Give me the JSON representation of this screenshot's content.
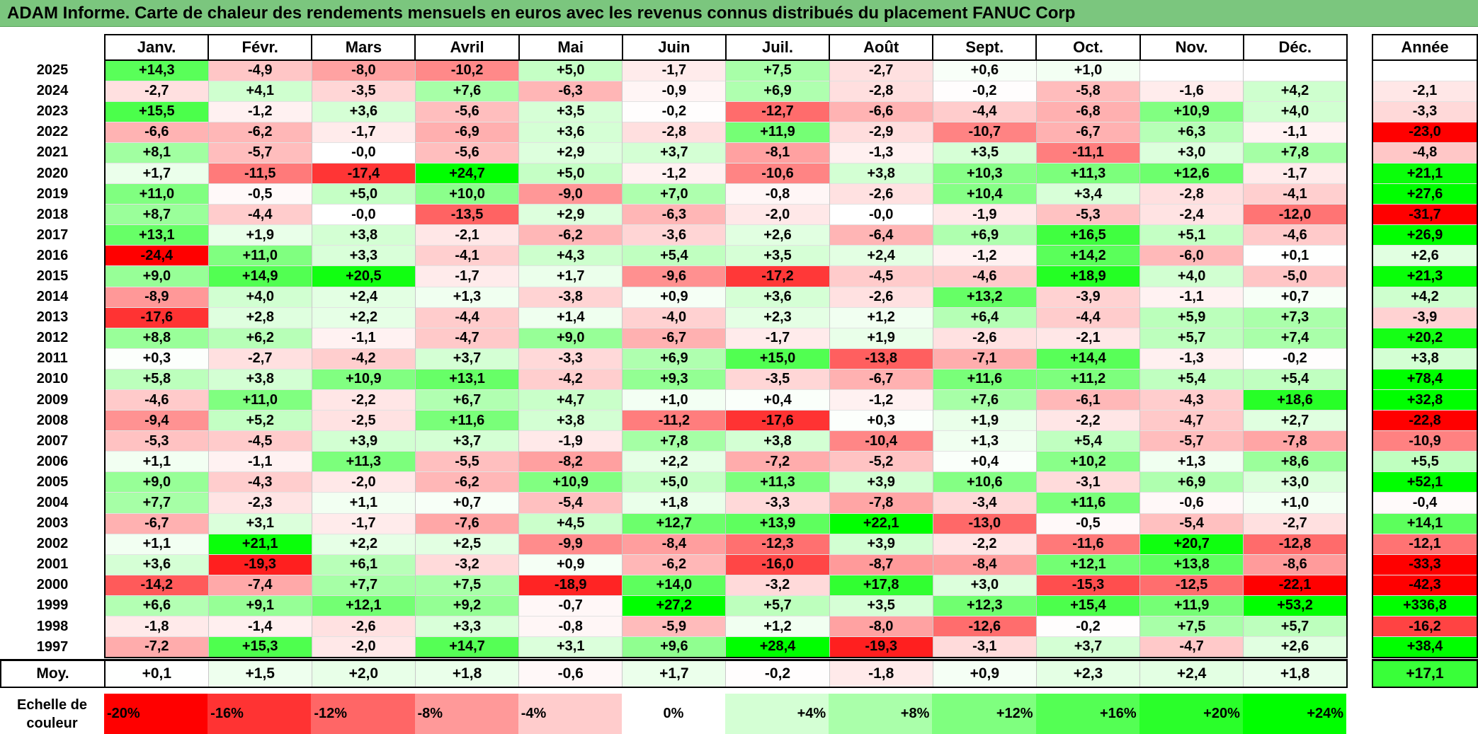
{
  "title": "ADAM Informe. Carte de chaleur des rendements mensuels en euros avec les revenus connus distribués du placement FANUC Corp",
  "chart_data": {
    "type": "heatmap",
    "months": [
      "Janv.",
      "Févr.",
      "Mars",
      "Avril",
      "Mai",
      "Juin",
      "Juil.",
      "Août",
      "Sept.",
      "Oct.",
      "Nov.",
      "Déc."
    ],
    "annual_header": "Année",
    "avg_label": "Moy.",
    "rows": [
      {
        "year": "2025",
        "values": [
          "+14,3",
          "-4,9",
          "-8,0",
          "-10,2",
          "+5,0",
          "-1,7",
          "+7,5",
          "-2,7",
          "+0,6",
          "+1,0",
          "",
          ""
        ],
        "annual": ""
      },
      {
        "year": "2024",
        "values": [
          "-2,7",
          "+4,1",
          "-3,5",
          "+7,6",
          "-6,3",
          "-0,9",
          "+6,9",
          "-2,8",
          "-0,2",
          "-5,8",
          "-1,6",
          "+4,2"
        ],
        "annual": "-2,1"
      },
      {
        "year": "2023",
        "values": [
          "+15,5",
          "-1,2",
          "+3,6",
          "-5,6",
          "+3,5",
          "-0,2",
          "-12,7",
          "-6,6",
          "-4,4",
          "-6,8",
          "+10,9",
          "+4,0"
        ],
        "annual": "-3,3"
      },
      {
        "year": "2022",
        "values": [
          "-6,6",
          "-6,2",
          "-1,7",
          "-6,9",
          "+3,6",
          "-2,8",
          "+11,9",
          "-2,9",
          "-10,7",
          "-6,7",
          "+6,3",
          "-1,1"
        ],
        "annual": "-23,0"
      },
      {
        "year": "2021",
        "values": [
          "+8,1",
          "-5,7",
          "-0,0",
          "-5,6",
          "+2,9",
          "+3,7",
          "-8,1",
          "-1,3",
          "+3,5",
          "-11,1",
          "+3,0",
          "+7,8"
        ],
        "annual": "-4,8"
      },
      {
        "year": "2020",
        "values": [
          "+1,7",
          "-11,5",
          "-17,4",
          "+24,7",
          "+5,0",
          "-1,2",
          "-10,6",
          "+3,8",
          "+10,3",
          "+11,3",
          "+12,6",
          "-1,7"
        ],
        "annual": "+21,1"
      },
      {
        "year": "2019",
        "values": [
          "+11,0",
          "-0,5",
          "+5,0",
          "+10,0",
          "-9,0",
          "+7,0",
          "-0,8",
          "-2,6",
          "+10,4",
          "+3,4",
          "-2,8",
          "-4,1"
        ],
        "annual": "+27,6"
      },
      {
        "year": "2018",
        "values": [
          "+8,7",
          "-4,4",
          "-0,0",
          "-13,5",
          "+2,9",
          "-6,3",
          "-2,0",
          "-0,0",
          "-1,9",
          "-5,3",
          "-2,4",
          "-12,0"
        ],
        "annual": "-31,7"
      },
      {
        "year": "2017",
        "values": [
          "+13,1",
          "+1,9",
          "+3,8",
          "-2,1",
          "-6,2",
          "-3,6",
          "+2,6",
          "-6,4",
          "+6,9",
          "+16,5",
          "+5,1",
          "-4,6"
        ],
        "annual": "+26,9"
      },
      {
        "year": "2016",
        "values": [
          "-24,4",
          "+11,0",
          "+3,3",
          "-4,1",
          "+4,3",
          "+5,4",
          "+3,5",
          "+2,4",
          "-1,2",
          "+14,2",
          "-6,0",
          "+0,1"
        ],
        "annual": "+2,6"
      },
      {
        "year": "2015",
        "values": [
          "+9,0",
          "+14,9",
          "+20,5",
          "-1,7",
          "+1,7",
          "-9,6",
          "-17,2",
          "-4,5",
          "-4,6",
          "+18,9",
          "+4,0",
          "-5,0"
        ],
        "annual": "+21,3"
      },
      {
        "year": "2014",
        "values": [
          "-8,9",
          "+4,0",
          "+2,4",
          "+1,3",
          "-3,8",
          "+0,9",
          "+3,6",
          "-2,6",
          "+13,2",
          "-3,9",
          "-1,1",
          "+0,7"
        ],
        "annual": "+4,2"
      },
      {
        "year": "2013",
        "values": [
          "-17,6",
          "+2,8",
          "+2,2",
          "-4,4",
          "+1,4",
          "-4,0",
          "+2,3",
          "+1,2",
          "+6,4",
          "-4,4",
          "+5,9",
          "+7,3"
        ],
        "annual": "-3,9"
      },
      {
        "year": "2012",
        "values": [
          "+8,8",
          "+6,2",
          "-1,1",
          "-4,7",
          "+9,0",
          "-6,7",
          "-1,7",
          "+1,9",
          "-2,6",
          "-2,1",
          "+5,7",
          "+7,4"
        ],
        "annual": "+20,2"
      },
      {
        "year": "2011",
        "values": [
          "+0,3",
          "-2,7",
          "-4,2",
          "+3,7",
          "-3,3",
          "+6,9",
          "+15,0",
          "-13,8",
          "-7,1",
          "+14,4",
          "-1,3",
          "-0,2"
        ],
        "annual": "+3,8"
      },
      {
        "year": "2010",
        "values": [
          "+5,8",
          "+3,8",
          "+10,9",
          "+13,1",
          "-4,2",
          "+9,3",
          "-3,5",
          "-6,7",
          "+11,6",
          "+11,2",
          "+5,4",
          "+5,4"
        ],
        "annual": "+78,4"
      },
      {
        "year": "2009",
        "values": [
          "-4,6",
          "+11,0",
          "-2,2",
          "+6,7",
          "+4,7",
          "+1,0",
          "+0,4",
          "-1,2",
          "+7,6",
          "-6,1",
          "-4,3",
          "+18,6"
        ],
        "annual": "+32,8"
      },
      {
        "year": "2008",
        "values": [
          "-9,4",
          "+5,2",
          "-2,5",
          "+11,6",
          "+3,8",
          "-11,2",
          "-17,6",
          "+0,3",
          "+1,9",
          "-2,2",
          "-4,7",
          "+2,7"
        ],
        "annual": "-22,8"
      },
      {
        "year": "2007",
        "values": [
          "-5,3",
          "-4,5",
          "+3,9",
          "+3,7",
          "-1,9",
          "+7,8",
          "+3,8",
          "-10,4",
          "+1,3",
          "+5,4",
          "-5,7",
          "-7,8"
        ],
        "annual": "-10,9"
      },
      {
        "year": "2006",
        "values": [
          "+1,1",
          "-1,1",
          "+11,3",
          "-5,5",
          "-8,2",
          "+2,2",
          "-7,2",
          "-5,2",
          "+0,4",
          "+10,2",
          "+1,3",
          "+8,6"
        ],
        "annual": "+5,5"
      },
      {
        "year": "2005",
        "values": [
          "+9,0",
          "-4,3",
          "-2,0",
          "-6,2",
          "+10,9",
          "+5,0",
          "+11,3",
          "+3,9",
          "+10,6",
          "-3,1",
          "+6,9",
          "+3,0"
        ],
        "annual": "+52,1"
      },
      {
        "year": "2004",
        "values": [
          "+7,7",
          "-2,3",
          "+1,1",
          "+0,7",
          "-5,4",
          "+1,8",
          "-3,3",
          "-7,8",
          "-3,4",
          "+11,6",
          "-0,6",
          "+1,0"
        ],
        "annual": "-0,4"
      },
      {
        "year": "2003",
        "values": [
          "-6,7",
          "+3,1",
          "-1,7",
          "-7,6",
          "+4,5",
          "+12,7",
          "+13,9",
          "+22,1",
          "-13,0",
          "-0,5",
          "-5,4",
          "-2,7"
        ],
        "annual": "+14,1"
      },
      {
        "year": "2002",
        "values": [
          "+1,1",
          "+21,1",
          "+2,2",
          "+2,5",
          "-9,9",
          "-8,4",
          "-12,3",
          "+3,9",
          "-2,2",
          "-11,6",
          "+20,7",
          "-12,8"
        ],
        "annual": "-12,1"
      },
      {
        "year": "2001",
        "values": [
          "+3,6",
          "-19,3",
          "+6,1",
          "-3,2",
          "+0,9",
          "-6,2",
          "-16,0",
          "-8,7",
          "-8,4",
          "+12,1",
          "+13,8",
          "-8,6"
        ],
        "annual": "-33,3"
      },
      {
        "year": "2000",
        "values": [
          "-14,2",
          "-7,4",
          "+7,7",
          "+7,5",
          "-18,9",
          "+14,0",
          "-3,2",
          "+17,8",
          "+3,0",
          "-15,3",
          "-12,5",
          "-22,1"
        ],
        "annual": "-42,3"
      },
      {
        "year": "1999",
        "values": [
          "+6,6",
          "+9,1",
          "+12,1",
          "+9,2",
          "-0,7",
          "+27,2",
          "+5,7",
          "+3,5",
          "+12,3",
          "+15,4",
          "+11,9",
          "+53,2"
        ],
        "annual": "+336,8"
      },
      {
        "year": "1998",
        "values": [
          "-1,8",
          "-1,4",
          "-2,6",
          "+3,3",
          "-0,8",
          "-5,9",
          "+1,2",
          "-8,0",
          "-12,6",
          "-0,2",
          "+7,5",
          "+5,7"
        ],
        "annual": "-16,2"
      },
      {
        "year": "1997",
        "values": [
          "-7,2",
          "+15,3",
          "-2,0",
          "+14,7",
          "+3,1",
          "+9,6",
          "+28,4",
          "-19,3",
          "-3,1",
          "+3,7",
          "-4,7",
          "+2,6"
        ],
        "annual": "+38,4"
      }
    ],
    "averages": [
      "+0,1",
      "+1,5",
      "+2,0",
      "+1,8",
      "-0,6",
      "+1,7",
      "-0,2",
      "-1,8",
      "+0,9",
      "+2,3",
      "+2,4",
      "+1,8"
    ],
    "annual_average": "+17,1",
    "scale_label": "Echelle de couleur",
    "scale": [
      "-20%",
      "-16%",
      "-12%",
      "-8%",
      "-4%",
      "0%",
      "+4%",
      "+8%",
      "+12%",
      "+16%",
      "+20%",
      "+24%"
    ],
    "colors": {
      "negative_max": "#ff0000",
      "neutral": "#ffffff",
      "positive_max": "#00ff00",
      "title_bar": "#7bc67e"
    }
  }
}
